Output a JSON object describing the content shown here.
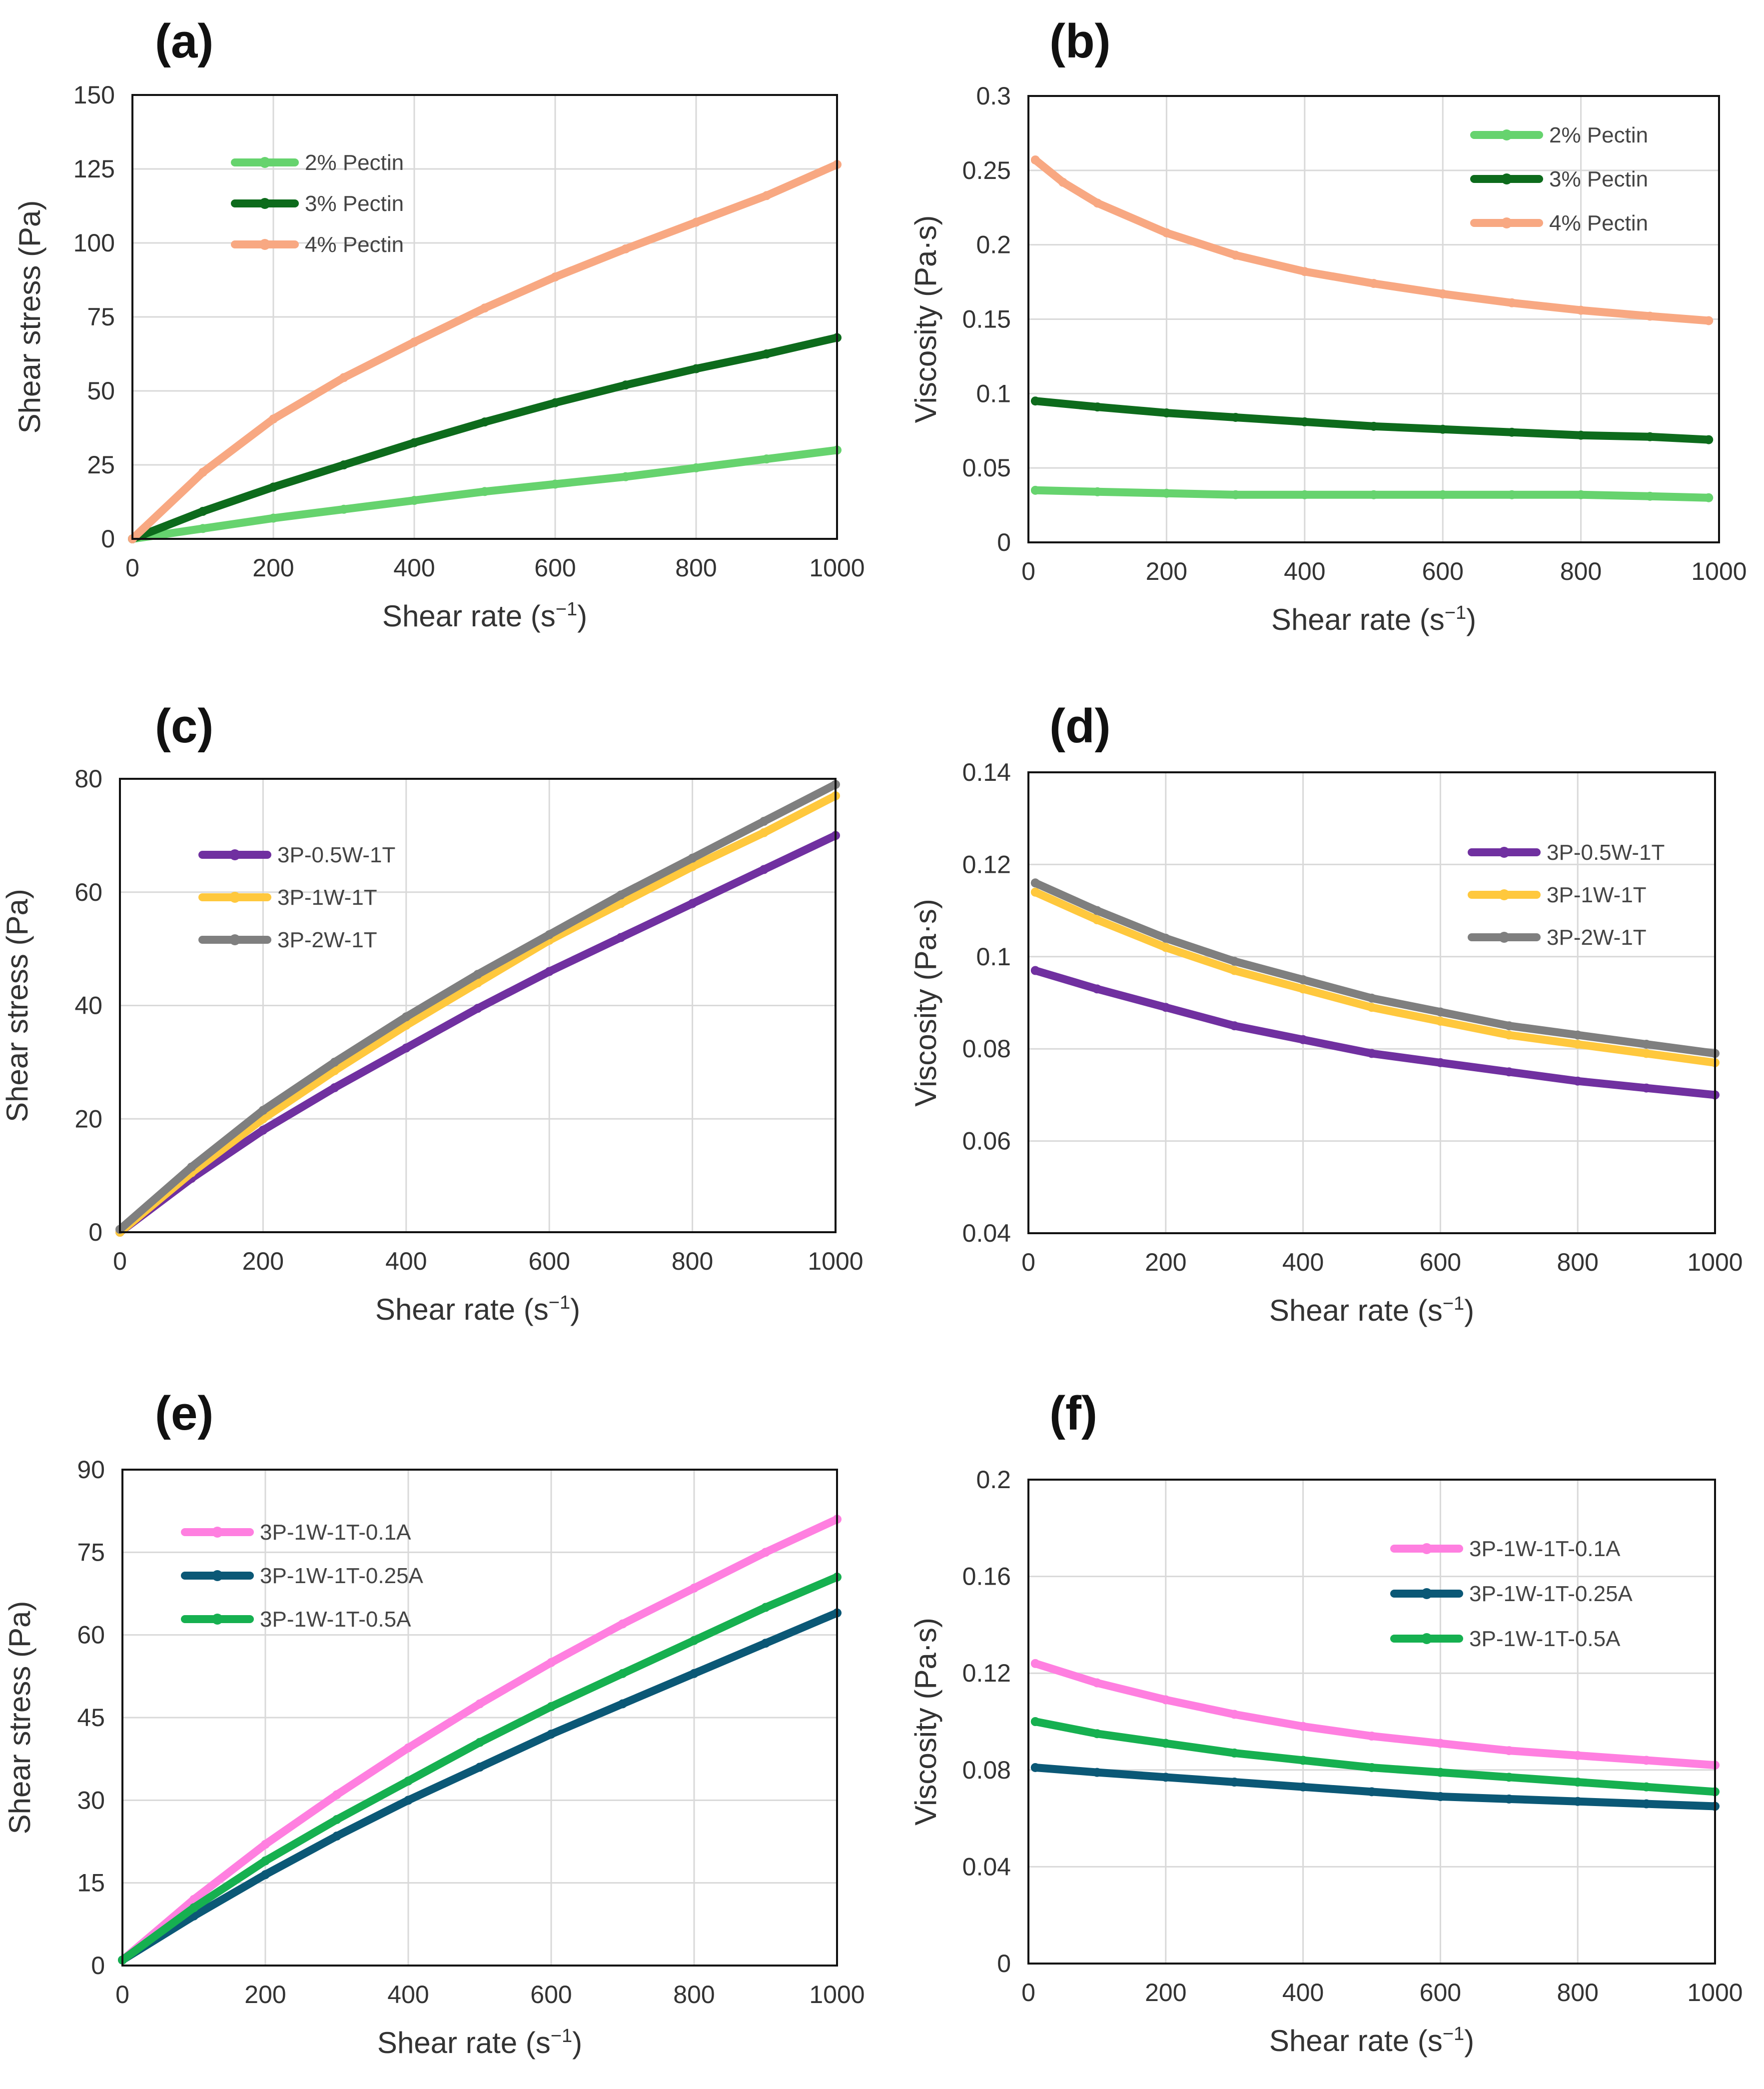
{
  "chart_data": [
    {
      "id": "a",
      "label": "(a)",
      "type": "line",
      "xlabel": "Shear rate (s",
      "xlabel_sup": "−1",
      "xlabel_end": ")",
      "ylabel": "Shear stress (Pa)",
      "xlim": [
        0,
        1000
      ],
      "ylim": [
        0,
        150
      ],
      "xticks": [
        "0",
        "200",
        "400",
        "600",
        "800",
        "1000"
      ],
      "yticks": [
        "0",
        "25",
        "50",
        "75",
        "100",
        "125",
        "150"
      ],
      "legend_position": "top-left",
      "series": [
        {
          "name": "2% Pectin",
          "color": "#66d36e",
          "x": [
            0,
            100,
            200,
            300,
            400,
            500,
            600,
            700,
            800,
            900,
            1000
          ],
          "y": [
            0,
            3.5,
            7,
            10,
            13,
            16,
            18.5,
            21,
            24,
            27,
            30
          ]
        },
        {
          "name": "3% Pectin",
          "color": "#0d6b1c",
          "x": [
            0,
            100,
            200,
            300,
            400,
            500,
            600,
            700,
            800,
            900,
            1000
          ],
          "y": [
            0,
            9.3,
            17.5,
            25,
            32.5,
            39.5,
            46,
            52,
            57.5,
            62.5,
            68
          ]
        },
        {
          "name": "4% Pectin",
          "color": "#f8a882",
          "x": [
            0,
            100,
            200,
            300,
            400,
            500,
            600,
            700,
            800,
            900,
            1000
          ],
          "y": [
            0,
            22.5,
            40.5,
            54.5,
            66.5,
            78,
            88.5,
            98,
            107,
            116,
            126.5
          ]
        }
      ]
    },
    {
      "id": "b",
      "label": "(b)",
      "type": "line",
      "xlabel": "Shear rate (s",
      "xlabel_sup": "−1",
      "xlabel_end": ")",
      "ylabel": "Viscosity (Pa·s)",
      "xlim": [
        0,
        1000
      ],
      "ylim": [
        0,
        0.3
      ],
      "xticks": [
        "0",
        "200",
        "400",
        "600",
        "800",
        "1000"
      ],
      "yticks": [
        "0",
        "0.05",
        "0.1",
        "0.15",
        "0.2",
        "0.25",
        "0.3"
      ],
      "legend_position": "top-right",
      "series": [
        {
          "name": "2% Pectin",
          "color": "#66d36e",
          "x": [
            10,
            100,
            200,
            300,
            400,
            500,
            600,
            700,
            800,
            900,
            985
          ],
          "y": [
            0.035,
            0.034,
            0.033,
            0.032,
            0.032,
            0.032,
            0.032,
            0.032,
            0.032,
            0.031,
            0.03
          ]
        },
        {
          "name": "3% Pectin",
          "color": "#0d6b1c",
          "x": [
            10,
            100,
            200,
            300,
            400,
            500,
            600,
            700,
            800,
            900,
            985
          ],
          "y": [
            0.095,
            0.091,
            0.087,
            0.084,
            0.081,
            0.078,
            0.076,
            0.074,
            0.072,
            0.071,
            0.069
          ]
        },
        {
          "name": "4% Pectin",
          "color": "#f8a882",
          "x": [
            10,
            50,
            100,
            200,
            300,
            400,
            500,
            600,
            700,
            800,
            900,
            985
          ],
          "y": [
            0.257,
            0.242,
            0.228,
            0.208,
            0.193,
            0.182,
            0.174,
            0.167,
            0.161,
            0.156,
            0.152,
            0.149
          ]
        }
      ]
    },
    {
      "id": "c",
      "label": "(c)",
      "type": "line",
      "xlabel": "Shear rate (s",
      "xlabel_sup": "−1",
      "xlabel_end": ")",
      "ylabel": "Shear stress (Pa)",
      "xlim": [
        0,
        1000
      ],
      "ylim": [
        0,
        80
      ],
      "xticks": [
        "0",
        "200",
        "400",
        "600",
        "800",
        "1000"
      ],
      "yticks": [
        "0",
        "20",
        "40",
        "60",
        "80"
      ],
      "legend_position": "top-left",
      "series": [
        {
          "name": "3P-0.5W-1T",
          "color": "#7030a0",
          "x": [
            0,
            100,
            200,
            300,
            400,
            500,
            600,
            700,
            800,
            900,
            1000
          ],
          "y": [
            0,
            9.5,
            18,
            25.5,
            32.5,
            39.5,
            46,
            52,
            58,
            64,
            70
          ]
        },
        {
          "name": "3P-1W-1T",
          "color": "#ffc83d",
          "x": [
            0,
            100,
            200,
            300,
            400,
            500,
            600,
            700,
            800,
            900,
            1000
          ],
          "y": [
            0,
            10.5,
            20,
            28.5,
            36.5,
            44,
            51.5,
            58,
            64.5,
            70.5,
            77
          ]
        },
        {
          "name": "3P-2W-1T",
          "color": "#7f7f7f",
          "x": [
            0,
            100,
            200,
            300,
            400,
            500,
            600,
            700,
            800,
            900,
            1000
          ],
          "y": [
            0.5,
            11.5,
            21.5,
            30,
            38,
            45.5,
            52.5,
            59.5,
            66,
            72.5,
            79
          ]
        }
      ]
    },
    {
      "id": "d",
      "label": "(d)",
      "type": "line",
      "xlabel": "Shear rate (s",
      "xlabel_sup": "−1",
      "xlabel_end": ")",
      "ylabel": "Viscosity (Pa·s)",
      "xlim": [
        0,
        1000
      ],
      "ylim": [
        0.04,
        0.14
      ],
      "xticks": [
        "0",
        "200",
        "400",
        "600",
        "800",
        "1000"
      ],
      "yticks": [
        "0.04",
        "0.06",
        "0.08",
        "0.1",
        "0.12",
        "0.14"
      ],
      "legend_position": "top-right",
      "series": [
        {
          "name": "3P-0.5W-1T",
          "color": "#7030a0",
          "x": [
            10,
            100,
            200,
            300,
            400,
            500,
            600,
            700,
            800,
            900,
            1000
          ],
          "y": [
            0.097,
            0.093,
            0.089,
            0.085,
            0.082,
            0.079,
            0.077,
            0.075,
            0.073,
            0.0715,
            0.07
          ]
        },
        {
          "name": "3P-1W-1T",
          "color": "#ffc83d",
          "x": [
            10,
            100,
            200,
            300,
            400,
            500,
            600,
            700,
            800,
            900,
            1000
          ],
          "y": [
            0.114,
            0.108,
            0.102,
            0.097,
            0.093,
            0.089,
            0.086,
            0.083,
            0.081,
            0.079,
            0.077
          ]
        },
        {
          "name": "3P-2W-1T",
          "color": "#7f7f7f",
          "x": [
            10,
            100,
            200,
            300,
            400,
            500,
            600,
            700,
            800,
            900,
            1000
          ],
          "y": [
            0.116,
            0.11,
            0.104,
            0.099,
            0.095,
            0.091,
            0.088,
            0.085,
            0.083,
            0.081,
            0.079
          ]
        }
      ]
    },
    {
      "id": "e",
      "label": "(e)",
      "type": "line",
      "xlabel": "Shear rate (s",
      "xlabel_sup": "−1",
      "xlabel_end": ")",
      "ylabel": "Shear stress (Pa)",
      "xlim": [
        0,
        1000
      ],
      "ylim": [
        0,
        90
      ],
      "xticks": [
        "0",
        "200",
        "400",
        "600",
        "800",
        "1000"
      ],
      "yticks": [
        "0",
        "15",
        "30",
        "45",
        "60",
        "75",
        "90"
      ],
      "legend_position": "top-left",
      "series": [
        {
          "name": "3P-1W-1T-0.1A",
          "color": "#ff7fe0",
          "x": [
            0,
            100,
            200,
            300,
            400,
            500,
            600,
            700,
            800,
            900,
            1000
          ],
          "y": [
            1,
            12,
            22,
            31,
            39.5,
            47.5,
            55,
            62,
            68.5,
            75,
            81
          ]
        },
        {
          "name": "3P-1W-1T-0.25A",
          "color": "#0b5876",
          "x": [
            0,
            100,
            200,
            300,
            400,
            500,
            600,
            700,
            800,
            900,
            1000
          ],
          "y": [
            1,
            9,
            16.5,
            23.5,
            30,
            36,
            42,
            47.5,
            53,
            58.5,
            64
          ]
        },
        {
          "name": "3P-1W-1T-0.5A",
          "color": "#16b050",
          "x": [
            0,
            100,
            200,
            300,
            400,
            500,
            600,
            700,
            800,
            900,
            1000
          ],
          "y": [
            1,
            10.5,
            19,
            26.5,
            33.5,
            40.5,
            47,
            53,
            59,
            65,
            70.5
          ]
        }
      ]
    },
    {
      "id": "f",
      "label": "(f)",
      "type": "line",
      "xlabel": "Shear rate (s",
      "xlabel_sup": "−1",
      "xlabel_end": ")",
      "ylabel": "Viscosity (Pa·s)",
      "xlim": [
        0,
        1000
      ],
      "ylim": [
        0,
        0.2
      ],
      "xticks": [
        "0",
        "200",
        "400",
        "600",
        "800",
        "1000"
      ],
      "yticks": [
        "0",
        "0.04",
        "0.08",
        "0.12",
        "0.16",
        "0.2"
      ],
      "legend_position": "top-right",
      "series": [
        {
          "name": "3P-1W-1T-0.1A",
          "color": "#ff7fe0",
          "x": [
            10,
            100,
            200,
            300,
            400,
            500,
            600,
            700,
            800,
            900,
            1000
          ],
          "y": [
            0.124,
            0.116,
            0.109,
            0.103,
            0.098,
            0.094,
            0.091,
            0.088,
            0.086,
            0.084,
            0.082
          ]
        },
        {
          "name": "3P-1W-1T-0.25A",
          "color": "#0b5876",
          "x": [
            10,
            100,
            200,
            300,
            400,
            500,
            600,
            700,
            800,
            900,
            1000
          ],
          "y": [
            0.081,
            0.079,
            0.077,
            0.075,
            0.073,
            0.071,
            0.069,
            0.068,
            0.067,
            0.066,
            0.065
          ]
        },
        {
          "name": "3P-1W-1T-0.5A",
          "color": "#16b050",
          "x": [
            10,
            100,
            200,
            300,
            400,
            500,
            600,
            700,
            800,
            900,
            1000
          ],
          "y": [
            0.1,
            0.095,
            0.091,
            0.087,
            0.084,
            0.081,
            0.079,
            0.077,
            0.075,
            0.073,
            0.071
          ]
        }
      ]
    }
  ]
}
